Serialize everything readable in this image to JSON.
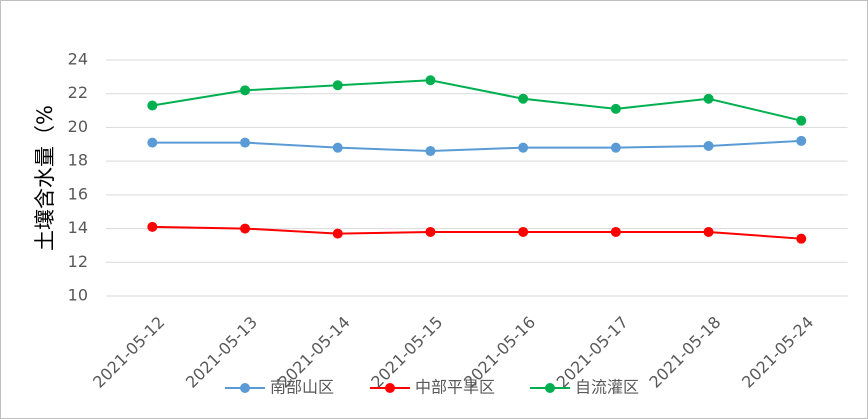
{
  "chart_data": {
    "type": "line",
    "y_label": "土壤含水量（%",
    "categories": [
      "2021-05-12",
      "2021-05-13",
      "2021-05-14",
      "2021-05-15",
      "2021-05-16",
      "2021-05-17",
      "2021-05-18",
      "2021-05-24"
    ],
    "series": [
      {
        "name": "南部山区",
        "color": "#5b9bd5",
        "values": [
          19.1,
          19.1,
          18.8,
          18.6,
          18.8,
          18.8,
          18.9,
          19.2
        ]
      },
      {
        "name": "中部平旱区",
        "color": "#ff0000",
        "values": [
          14.1,
          14.0,
          13.7,
          13.8,
          13.8,
          13.8,
          13.8,
          13.4
        ]
      },
      {
        "name": "自流灌区",
        "color": "#00b050",
        "values": [
          21.3,
          22.2,
          22.5,
          22.8,
          21.7,
          21.1,
          21.7,
          20.4
        ]
      }
    ],
    "ylim": [
      10,
      24
    ],
    "yticks": [
      10,
      12,
      14,
      16,
      18,
      20,
      22,
      24
    ],
    "grid": true,
    "legend": "bottom"
  }
}
